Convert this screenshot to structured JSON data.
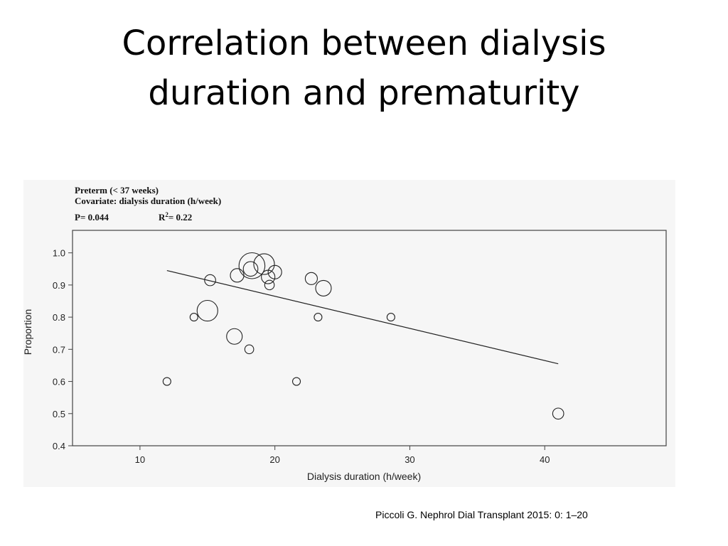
{
  "slide": {
    "title_line1": "Correlation between dialysis",
    "title_line2": "duration and prematurity",
    "citation": "Piccoli G. Nephrol Dial Transplant 2015: 0: 1–20"
  },
  "chart_data": {
    "type": "scatter",
    "annotation": {
      "line1": "Preterm (< 37 weeks)",
      "line2": "Covariate: dialysis duration (h/week)",
      "p_value": "P= 0.044",
      "r2_prefix": "R",
      "r2_sup": "2",
      "r2_value": "= 0.22"
    },
    "xlabel": "Dialysis duration (h/week)",
    "ylabel": "Proportion",
    "xlim": [
      5,
      49
    ],
    "ylim": [
      0.4,
      1.07
    ],
    "xticks": [
      10,
      20,
      30,
      40
    ],
    "yticks": [
      0.4,
      0.5,
      0.6,
      0.7,
      0.8,
      0.9,
      1.0
    ],
    "ytick_labels": [
      "0.4",
      "0.5",
      "0.6",
      "0.7",
      "0.8",
      "0.9",
      "1.0"
    ],
    "grid": false,
    "points": [
      {
        "x": 12.0,
        "y": 0.6,
        "size": 1
      },
      {
        "x": 14.0,
        "y": 0.8,
        "size": 1
      },
      {
        "x": 15.0,
        "y": 0.82,
        "size": 7
      },
      {
        "x": 15.2,
        "y": 0.915,
        "size": 2
      },
      {
        "x": 17.0,
        "y": 0.74,
        "size": 4
      },
      {
        "x": 17.2,
        "y": 0.93,
        "size": 3
      },
      {
        "x": 18.1,
        "y": 0.7,
        "size": 1.3
      },
      {
        "x": 18.2,
        "y": 0.95,
        "size": 3.5
      },
      {
        "x": 18.3,
        "y": 0.96,
        "size": 11
      },
      {
        "x": 19.2,
        "y": 0.965,
        "size": 7
      },
      {
        "x": 19.5,
        "y": 0.925,
        "size": 3
      },
      {
        "x": 19.6,
        "y": 0.9,
        "size": 1.5
      },
      {
        "x": 20.0,
        "y": 0.94,
        "size": 3
      },
      {
        "x": 21.6,
        "y": 0.6,
        "size": 1
      },
      {
        "x": 22.7,
        "y": 0.92,
        "size": 2.4
      },
      {
        "x": 23.2,
        "y": 0.8,
        "size": 1
      },
      {
        "x": 23.6,
        "y": 0.89,
        "size": 4
      },
      {
        "x": 28.6,
        "y": 0.8,
        "size": 1
      },
      {
        "x": 41.0,
        "y": 0.5,
        "size": 2
      }
    ],
    "fit_line": {
      "x": [
        12.0,
        41.0
      ],
      "y": [
        0.945,
        0.655
      ]
    }
  }
}
